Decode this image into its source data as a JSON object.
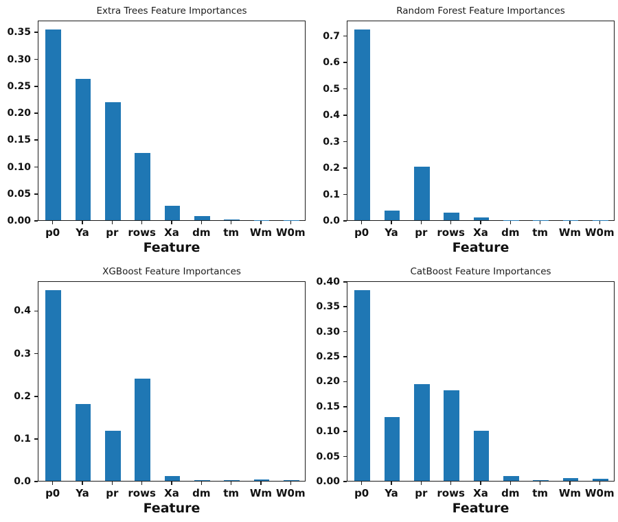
{
  "figure": {
    "background_color": "#ffffff",
    "bar_color": "#1f77b4",
    "axis_color": "#1a1a1a",
    "grid": "off",
    "layout": "2x2 subplots"
  },
  "chart_data": [
    {
      "type": "bar",
      "title": "Extra Trees Feature Importances",
      "xlabel": "Feature",
      "ylabel": "",
      "categories": [
        "p0",
        "Ya",
        "pr",
        "rows",
        "Xa",
        "dm",
        "tm",
        "Wm",
        "W0m"
      ],
      "values": [
        0.354,
        0.263,
        0.219,
        0.125,
        0.027,
        0.008,
        0.001,
        0.0005,
        0.0005
      ],
      "ylim": [
        0,
        0.372
      ],
      "yticks": [
        0,
        0.05,
        0.1,
        0.15,
        0.2,
        0.25,
        0.3,
        0.35
      ],
      "ytick_labels": [
        "0.00",
        "0.05",
        "0.10",
        "0.15",
        "0.20",
        "0.25",
        "0.30",
        "0.35"
      ],
      "legend": "none"
    },
    {
      "type": "bar",
      "title": "Random Forest Feature Importances",
      "xlabel": "Feature",
      "ylabel": "",
      "categories": [
        "p0",
        "Ya",
        "pr",
        "rows",
        "Xa",
        "dm",
        "tm",
        "Wm",
        "W0m"
      ],
      "values": [
        0.722,
        0.036,
        0.202,
        0.029,
        0.011,
        0.001,
        0.0005,
        0.0004,
        0.0003
      ],
      "ylim": [
        0,
        0.759
      ],
      "yticks": [
        0,
        0.1,
        0.2,
        0.3,
        0.4,
        0.5,
        0.6,
        0.7
      ],
      "ytick_labels": [
        "0.0",
        "0.1",
        "0.2",
        "0.3",
        "0.4",
        "0.5",
        "0.6",
        "0.7"
      ],
      "legend": "none"
    },
    {
      "type": "bar",
      "title": "XGBoost Feature Importances",
      "xlabel": "Feature",
      "ylabel": "",
      "categories": [
        "p0",
        "Ya",
        "pr",
        "rows",
        "Xa",
        "dm",
        "tm",
        "Wm",
        "W0m"
      ],
      "values": [
        0.448,
        0.181,
        0.117,
        0.24,
        0.012,
        0.001,
        0.001,
        0.004,
        0.001
      ],
      "ylim": [
        0,
        0.47
      ],
      "yticks": [
        0,
        0.1,
        0.2,
        0.3,
        0.4
      ],
      "ytick_labels": [
        "0.0",
        "0.1",
        "0.2",
        "0.3",
        "0.4"
      ],
      "legend": "none"
    },
    {
      "type": "bar",
      "title": "CatBoost Feature Importances",
      "xlabel": "Feature",
      "ylabel": "",
      "categories": [
        "p0",
        "Ya",
        "pr",
        "rows",
        "Xa",
        "dm",
        "tm",
        "Wm",
        "W0m"
      ],
      "values": [
        0.382,
        0.128,
        0.193,
        0.181,
        0.1,
        0.01,
        0.002,
        0.005,
        0.004
      ],
      "ylim": [
        0,
        0.401
      ],
      "yticks": [
        0,
        0.05,
        0.1,
        0.15,
        0.2,
        0.25,
        0.3,
        0.35,
        0.4
      ],
      "ytick_labels": [
        "0.00",
        "0.05",
        "0.10",
        "0.15",
        "0.20",
        "0.25",
        "0.30",
        "0.35",
        "0.40"
      ],
      "legend": "none"
    }
  ]
}
